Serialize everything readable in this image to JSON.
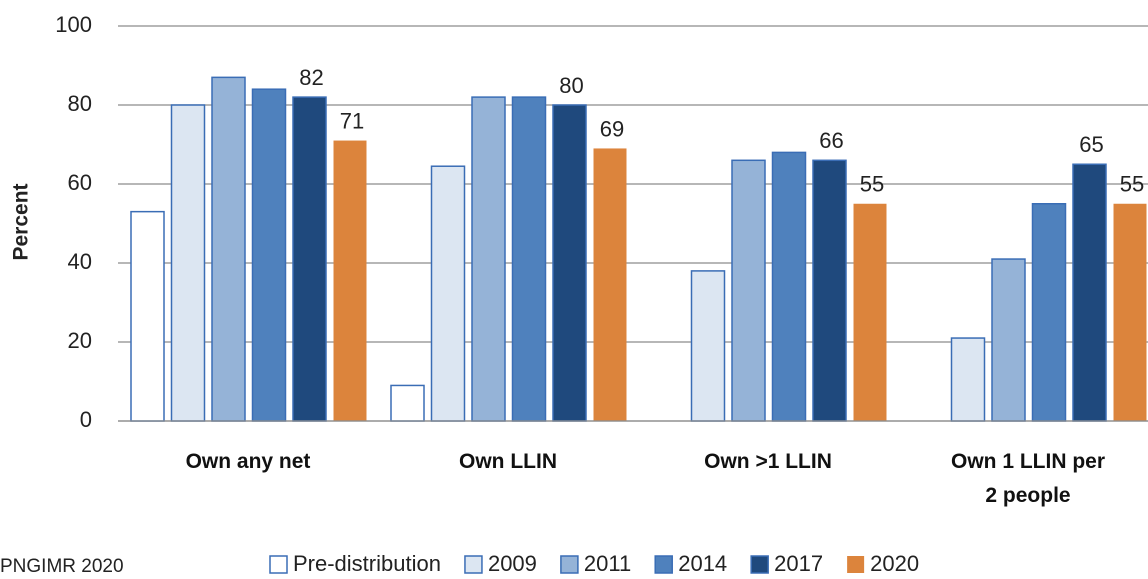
{
  "chart_data": {
    "type": "bar",
    "y_label": "Percent",
    "source": "PNGIMR 2020",
    "categories": [
      "Own any net",
      "Own LLIN",
      "Own >1 LLIN",
      "Own 1 LLIN per 2 people"
    ],
    "series": [
      {
        "name": "Pre-distribution",
        "color": "#ffffff",
        "values": [
          53,
          9,
          null,
          null
        ],
        "data_labels": false
      },
      {
        "name": "2009",
        "color": "#dce6f2",
        "values": [
          80,
          64.5,
          38,
          21
        ],
        "data_labels": false
      },
      {
        "name": "2011",
        "color": "#95b3d7",
        "values": [
          87,
          82,
          66,
          41
        ],
        "data_labels": false
      },
      {
        "name": "2014",
        "color": "#4f81bd",
        "values": [
          84,
          82,
          68,
          55
        ],
        "data_labels": false
      },
      {
        "name": "2017",
        "color": "#1f497d",
        "values": [
          82,
          80,
          66,
          65
        ],
        "data_labels": true
      },
      {
        "name": "2020",
        "color": "#dc843c",
        "values": [
          71,
          69,
          55,
          55
        ],
        "data_labels": true
      }
    ],
    "ylim": [
      0,
      100
    ],
    "yticks": [
      0,
      20,
      40,
      60,
      80,
      100
    ],
    "grid": true
  }
}
